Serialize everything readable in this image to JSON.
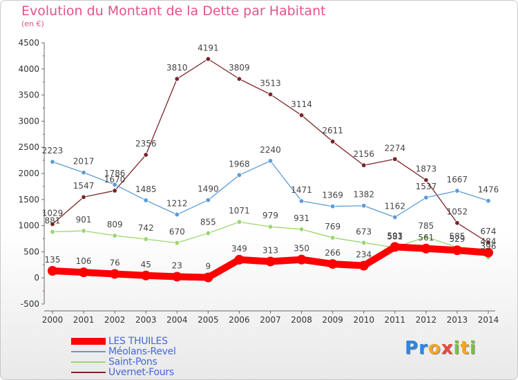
{
  "header": {
    "title": "Evolution du Montant de la Dette par Habitant",
    "subtitle": "(en €)"
  },
  "logo": {
    "text": "Proxiti",
    "letters": [
      {
        "ch": "P",
        "color": "#2e86de"
      },
      {
        "ch": "r",
        "color": "#2e86de"
      },
      {
        "ch": "o",
        "color": "#f5a623"
      },
      {
        "ch": "x",
        "color": "#e74c3c"
      },
      {
        "ch": "i",
        "color": "#7bc043"
      },
      {
        "ch": "t",
        "color": "#f5a623"
      },
      {
        "ch": "i",
        "color": "#7bc043"
      }
    ]
  },
  "chart_data": {
    "type": "line",
    "title": "Evolution du Montant de la Dette par Habitant",
    "subtitle": "(en €)",
    "x": [
      2000,
      2001,
      2002,
      2003,
      2004,
      2005,
      2006,
      2007,
      2008,
      2009,
      2010,
      2011,
      2012,
      2013,
      2014
    ],
    "ylim": [
      -500,
      4500
    ],
    "yticks": [
      -500,
      0,
      500,
      1000,
      1500,
      2000,
      2500,
      3000,
      3500,
      4000,
      4500
    ],
    "grid": false,
    "legend_position": "bottom-left",
    "series": [
      {
        "name": "LES THUILES",
        "color": "#ff0000",
        "values": [
          135,
          106,
          76,
          45,
          23,
          9,
          349,
          313,
          350,
          266,
          234,
          593,
          561,
          529,
          484
        ]
      },
      {
        "name": "Méolans-Revel",
        "color": "#5b9bd5",
        "values": [
          2223,
          2017,
          1786,
          1485,
          1212,
          1490,
          1968,
          2240,
          1471,
          1369,
          1382,
          1162,
          1537,
          1667,
          1476
        ]
      },
      {
        "name": "Saint-Pons",
        "color": "#99d66b",
        "values": [
          881,
          901,
          809,
          742,
          670,
          855,
          1071,
          979,
          931,
          769,
          673,
          581,
          785,
          585,
          396
        ]
      },
      {
        "name": "Uvernet-Fours",
        "color": "#7a2428",
        "values": [
          1029,
          1547,
          1670,
          2356,
          3810,
          4191,
          3809,
          3513,
          3114,
          2611,
          2156,
          2274,
          1873,
          1052,
          674
        ]
      }
    ]
  }
}
